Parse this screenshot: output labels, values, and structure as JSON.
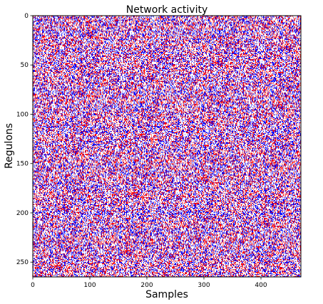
{
  "chart_data": {
    "type": "heatmap",
    "title": "Network activity",
    "xlabel": "Samples",
    "ylabel": "Regulons",
    "xlim": [
      0,
      470
    ],
    "ylim": [
      0,
      265
    ],
    "y_inverted": true,
    "xticks": [
      0,
      100,
      200,
      300,
      400
    ],
    "yticks": [
      0,
      50,
      100,
      150,
      200,
      250
    ],
    "xtick_labels": [
      "0",
      "100",
      "200",
      "300",
      "400"
    ],
    "ytick_labels": [
      "0",
      "50",
      "100",
      "150",
      "200",
      "250"
    ],
    "n_rows": 265,
    "n_cols": 470,
    "states": [
      -1,
      0,
      1
    ],
    "colors": {
      "-1": "#0000ff",
      "0": "#ffffff",
      "1": "#ff0000"
    },
    "fraction_active": 0.5,
    "grid": false,
    "legend": "none"
  }
}
